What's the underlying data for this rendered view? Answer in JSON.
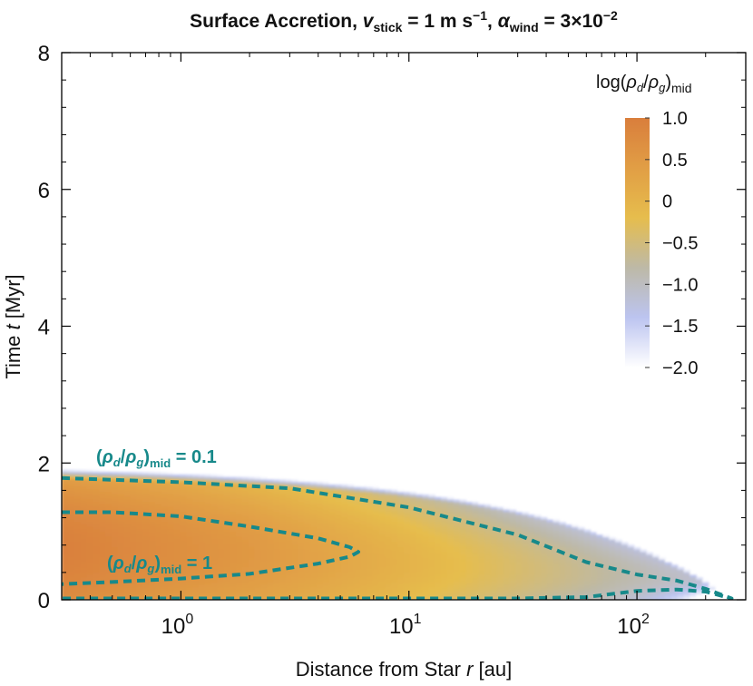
{
  "chart_data": {
    "type": "heatmap",
    "title": {
      "main": "Surface Accretion,",
      "v_symbol": "v",
      "v_subscript": "stick",
      "v_value": " = 1 m s",
      "v_exponent": "−1",
      "sep": ",",
      "alpha_symbol": "α",
      "alpha_subscript": "wind",
      "alpha_value": " = 3×10",
      "alpha_exponent": "−2"
    },
    "xlabel": {
      "text": "Distance from Star",
      "symbol": "r",
      "unit": "[au]"
    },
    "ylabel": {
      "text": "Time",
      "symbol": "t",
      "unit": "[Myr]"
    },
    "x_scale": "log",
    "xlim": [
      0.3,
      300
    ],
    "ylim": [
      0,
      8
    ],
    "x_ticks": [
      {
        "value": 1,
        "base": "10",
        "exp": "0"
      },
      {
        "value": 10,
        "base": "10",
        "exp": "1"
      },
      {
        "value": 100,
        "base": "10",
        "exp": "2"
      }
    ],
    "y_ticks": [
      {
        "value": 0,
        "label": "0"
      },
      {
        "value": 2,
        "label": "2"
      },
      {
        "value": 4,
        "label": "4"
      },
      {
        "value": 6,
        "label": "6"
      },
      {
        "value": 8,
        "label": "8"
      }
    ],
    "colorbar": {
      "label_pre": "log(",
      "rho": "ρ",
      "sub_d": "d",
      "slash": "/",
      "sub_g": "g",
      "label_post": ")",
      "label_sub": "mid",
      "range": [
        -2.0,
        1.0
      ],
      "tick_labels": [
        "1.0",
        "0.5",
        "0",
        "−0.5",
        "−1.0",
        "−1.5",
        "−2.0"
      ],
      "tick_values": [
        1.0,
        0.5,
        0,
        -0.5,
        -1.0,
        -1.5,
        -2.0
      ],
      "colors": [
        "#ffffff",
        "#bcc4f0",
        "#bdb9a7",
        "#e6bd4d",
        "#e19e45",
        "#d97e3c"
      ]
    },
    "contours": [
      {
        "level": 0.1,
        "label": {
          "pre": "(",
          "rho1": "ρ",
          "d": "d",
          "slash": "/",
          "rho2": "ρ",
          "g": "g",
          "post": ")",
          "sub": "mid",
          "value": " = 0.1"
        },
        "upper": [
          [
            0.3,
            1.78
          ],
          [
            1,
            1.72
          ],
          [
            3,
            1.63
          ],
          [
            10,
            1.35
          ],
          [
            30,
            0.95
          ],
          [
            60,
            0.55
          ],
          [
            100,
            0.37
          ],
          [
            150,
            0.28
          ],
          [
            200,
            0.16
          ],
          [
            260,
            0.02
          ]
        ],
        "lower": [
          [
            0.3,
            0.02
          ],
          [
            30,
            0.02
          ],
          [
            60,
            0.04
          ],
          [
            100,
            0.13
          ],
          [
            150,
            0.15
          ],
          [
            200,
            0.12
          ],
          [
            260,
            0.02
          ]
        ]
      },
      {
        "level": 1,
        "label": {
          "pre": "(",
          "rho1": "ρ",
          "d": "d",
          "slash": "/",
          "rho2": "ρ",
          "g": "g",
          "post": ")",
          "sub": "mid",
          "value": " = 1"
        },
        "upper": [
          [
            0.3,
            1.28
          ],
          [
            0.5,
            1.28
          ],
          [
            1,
            1.22
          ],
          [
            2,
            1.07
          ],
          [
            4,
            0.9
          ],
          [
            5.5,
            0.77
          ],
          [
            6,
            0.7
          ]
        ],
        "lower": [
          [
            0.3,
            0.23
          ],
          [
            0.5,
            0.26
          ],
          [
            1,
            0.31
          ],
          [
            2,
            0.38
          ],
          [
            4,
            0.53
          ],
          [
            5.5,
            0.63
          ],
          [
            6,
            0.7
          ]
        ]
      }
    ]
  }
}
